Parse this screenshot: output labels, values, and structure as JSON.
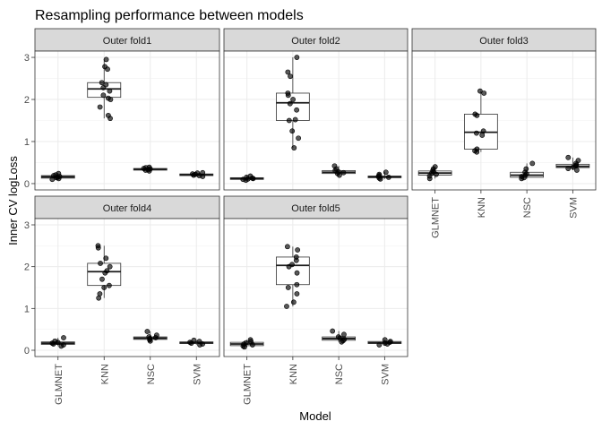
{
  "chart_data": {
    "type": "box",
    "title": "Resampling performance between models",
    "xlabel": "Model",
    "ylabel": "Inner CV logLoss",
    "categories": [
      "GLMNET",
      "KNN",
      "NSC",
      "SVM"
    ],
    "ylim": [
      -0.15,
      3.15
    ],
    "yticks": [
      0,
      1,
      2,
      3
    ],
    "grid": true,
    "panels": [
      {
        "name": "Outer fold1",
        "boxes": [
          {
            "model": "GLMNET",
            "whisker_low": 0.1,
            "q1": 0.13,
            "median": 0.16,
            "q3": 0.19,
            "whisker_high": 0.24
          },
          {
            "model": "KNN",
            "whisker_low": 1.55,
            "q1": 2.05,
            "median": 2.25,
            "q3": 2.4,
            "whisker_high": 2.95
          },
          {
            "model": "NSC",
            "whisker_low": 0.3,
            "q1": 0.32,
            "median": 0.34,
            "q3": 0.36,
            "whisker_high": 0.39
          },
          {
            "model": "SVM",
            "whisker_low": 0.17,
            "q1": 0.19,
            "median": 0.21,
            "q3": 0.23,
            "whisker_high": 0.26
          }
        ],
        "points": {
          "GLMNET": [
            0.1,
            0.12,
            0.14,
            0.15,
            0.17,
            0.19,
            0.21,
            0.24
          ],
          "KNN": [
            1.55,
            1.62,
            1.82,
            2.0,
            2.03,
            2.1,
            2.2,
            2.28,
            2.35,
            2.4,
            2.72,
            2.78,
            2.95
          ],
          "NSC": [
            0.3,
            0.32,
            0.33,
            0.35,
            0.36,
            0.38,
            0.39
          ],
          "SVM": [
            0.17,
            0.19,
            0.2,
            0.22,
            0.23,
            0.25,
            0.26
          ]
        }
      },
      {
        "name": "Outer fold2",
        "boxes": [
          {
            "model": "GLMNET",
            "whisker_low": 0.08,
            "q1": 0.1,
            "median": 0.12,
            "q3": 0.14,
            "whisker_high": 0.18
          },
          {
            "model": "KNN",
            "whisker_low": 0.85,
            "q1": 1.5,
            "median": 1.92,
            "q3": 2.15,
            "whisker_high": 3.0
          },
          {
            "model": "NSC",
            "whisker_low": 0.2,
            "q1": 0.24,
            "median": 0.27,
            "q3": 0.31,
            "whisker_high": 0.42
          },
          {
            "model": "SVM",
            "whisker_low": 0.11,
            "q1": 0.14,
            "median": 0.16,
            "q3": 0.18,
            "whisker_high": 0.27
          }
        ],
        "points": {
          "GLMNET": [
            0.08,
            0.1,
            0.11,
            0.12,
            0.13,
            0.15,
            0.18
          ],
          "KNN": [
            0.85,
            1.08,
            1.25,
            1.5,
            1.52,
            1.75,
            1.9,
            2.0,
            2.1,
            2.15,
            2.55,
            2.65,
            3.0
          ],
          "NSC": [
            0.2,
            0.24,
            0.26,
            0.28,
            0.31,
            0.35,
            0.42
          ],
          "SVM": [
            0.11,
            0.13,
            0.15,
            0.17,
            0.19,
            0.22,
            0.27
          ]
        }
      },
      {
        "name": "Outer fold3",
        "boxes": [
          {
            "model": "GLMNET",
            "whisker_low": 0.12,
            "q1": 0.2,
            "median": 0.25,
            "q3": 0.3,
            "whisker_high": 0.4
          },
          {
            "model": "KNN",
            "whisker_low": 0.75,
            "q1": 0.82,
            "median": 1.22,
            "q3": 1.65,
            "whisker_high": 2.2
          },
          {
            "model": "NSC",
            "whisker_low": 0.12,
            "q1": 0.15,
            "median": 0.2,
            "q3": 0.27,
            "whisker_high": 0.48
          },
          {
            "model": "SVM",
            "whisker_low": 0.32,
            "q1": 0.38,
            "median": 0.41,
            "q3": 0.46,
            "whisker_high": 0.62
          }
        ],
        "points": {
          "GLMNET": [
            0.12,
            0.18,
            0.22,
            0.25,
            0.28,
            0.31,
            0.35,
            0.4
          ],
          "KNN": [
            0.75,
            0.78,
            0.82,
            1.15,
            1.2,
            1.25,
            1.62,
            1.65,
            2.15,
            2.2
          ],
          "NSC": [
            0.12,
            0.14,
            0.17,
            0.2,
            0.23,
            0.27,
            0.35,
            0.48
          ],
          "SVM": [
            0.32,
            0.36,
            0.39,
            0.42,
            0.44,
            0.48,
            0.55,
            0.62
          ]
        }
      },
      {
        "name": "Outer fold4",
        "boxes": [
          {
            "model": "GLMNET",
            "whisker_low": 0.1,
            "q1": 0.14,
            "median": 0.17,
            "q3": 0.2,
            "whisker_high": 0.3
          },
          {
            "model": "KNN",
            "whisker_low": 1.25,
            "q1": 1.55,
            "median": 1.88,
            "q3": 2.08,
            "whisker_high": 2.5
          },
          {
            "model": "NSC",
            "whisker_low": 0.22,
            "q1": 0.26,
            "median": 0.29,
            "q3": 0.32,
            "whisker_high": 0.45
          },
          {
            "model": "SVM",
            "whisker_low": 0.13,
            "q1": 0.16,
            "median": 0.18,
            "q3": 0.2,
            "whisker_high": 0.24
          }
        ],
        "points": {
          "GLMNET": [
            0.1,
            0.13,
            0.15,
            0.17,
            0.19,
            0.22,
            0.3
          ],
          "KNN": [
            1.25,
            1.35,
            1.5,
            1.55,
            1.7,
            1.85,
            1.9,
            2.0,
            2.08,
            2.2,
            2.45,
            2.5
          ],
          "NSC": [
            0.22,
            0.25,
            0.28,
            0.3,
            0.32,
            0.36,
            0.45
          ],
          "SVM": [
            0.13,
            0.15,
            0.17,
            0.19,
            0.21,
            0.24
          ]
        }
      },
      {
        "name": "Outer fold5",
        "boxes": [
          {
            "model": "GLMNET",
            "whisker_low": 0.08,
            "q1": 0.11,
            "median": 0.15,
            "q3": 0.19,
            "whisker_high": 0.25
          },
          {
            "model": "KNN",
            "whisker_low": 1.05,
            "q1": 1.57,
            "median": 2.03,
            "q3": 2.23,
            "whisker_high": 2.48
          },
          {
            "model": "NSC",
            "whisker_low": 0.2,
            "q1": 0.24,
            "median": 0.28,
            "q3": 0.32,
            "whisker_high": 0.46
          },
          {
            "model": "SVM",
            "whisker_low": 0.13,
            "q1": 0.16,
            "median": 0.18,
            "q3": 0.21,
            "whisker_high": 0.25
          }
        ],
        "points": {
          "GLMNET": [
            0.08,
            0.1,
            0.13,
            0.15,
            0.18,
            0.21,
            0.25
          ],
          "KNN": [
            1.05,
            1.15,
            1.35,
            1.5,
            1.57,
            1.85,
            2.0,
            2.05,
            2.15,
            2.23,
            2.4,
            2.48
          ],
          "NSC": [
            0.2,
            0.23,
            0.26,
            0.29,
            0.32,
            0.38,
            0.46
          ],
          "SVM": [
            0.13,
            0.15,
            0.17,
            0.19,
            0.21,
            0.25
          ]
        }
      }
    ]
  }
}
